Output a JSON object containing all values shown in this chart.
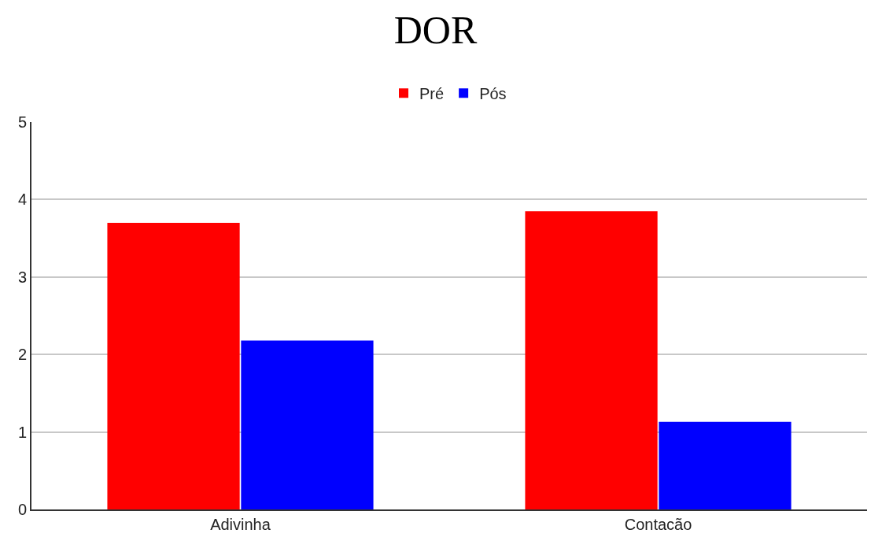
{
  "chart_data": {
    "type": "bar",
    "title": "DOR",
    "categories": [
      "Adivinha",
      "Contacão"
    ],
    "series": [
      {
        "name": "Pré",
        "color": "#ff0000",
        "values": [
          3.7,
          3.85
        ]
      },
      {
        "name": "Pós",
        "color": "#0000ff",
        "values": [
          2.18,
          1.13
        ]
      }
    ],
    "ylim": [
      0,
      5
    ],
    "yticks": [
      0,
      1,
      2,
      3,
      4,
      5
    ],
    "grid": "y",
    "legend": "top"
  }
}
